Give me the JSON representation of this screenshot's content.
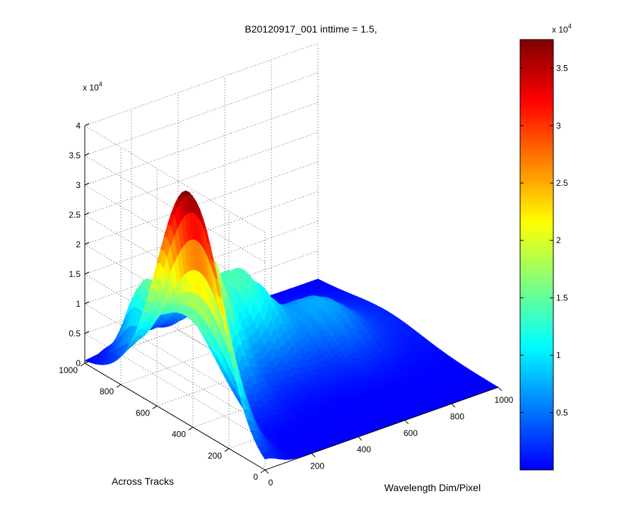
{
  "chart_data": {
    "type": "surface",
    "title": "B20120917_001 inttime = 1.5,",
    "xlabel": "Wavelength Dim/Pixel",
    "ylabel": "Across Tracks",
    "zlabel": "",
    "x_range": [
      0,
      1000
    ],
    "y_range": [
      0,
      1000
    ],
    "z_range": [
      0,
      40000
    ],
    "x_ticks": [
      "0",
      "200",
      "400",
      "600",
      "800",
      "1000"
    ],
    "y_ticks": [
      "0",
      "200",
      "400",
      "600",
      "800",
      "1000"
    ],
    "z_ticks": [
      "0",
      "0.5",
      "1",
      "1.5",
      "2",
      "2.5",
      "3",
      "3.5",
      "4"
    ],
    "z_multiplier": "x 10",
    "z_multiplier_exp": "4",
    "grid": true,
    "colormap": "jet",
    "colorbar": {
      "range": [
        0,
        37500
      ],
      "ticks": [
        "0.5",
        "1",
        "1.5",
        "2",
        "2.5",
        "3",
        "3.5"
      ],
      "multiplier": "x 10",
      "multiplier_exp": "4"
    },
    "peaks": [
      {
        "wavelength_pixel": 0,
        "across_track": 420,
        "value": 38000
      },
      {
        "wavelength_pixel": 200,
        "across_track": 650,
        "value": 23000
      },
      {
        "wavelength_pixel": 430,
        "across_track": 700,
        "value": 13000
      },
      {
        "wavelength_pixel": 720,
        "across_track": 600,
        "value": 6500
      }
    ]
  }
}
